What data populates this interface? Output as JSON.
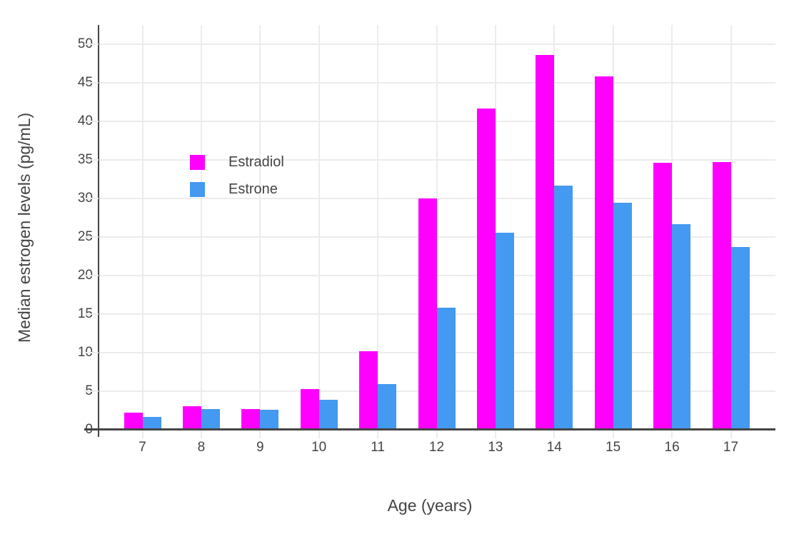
{
  "chart_data": {
    "type": "bar",
    "title": "",
    "xlabel": "Age (years)",
    "ylabel": "Median estrogen levels (pg/mL)",
    "categories": [
      7,
      8,
      9,
      10,
      11,
      12,
      13,
      14,
      15,
      16,
      17
    ],
    "series": [
      {
        "name": "Estradiol",
        "color": "#FF00FF",
        "values": [
          2.2,
          3.1,
          2.7,
          5.3,
          10.2,
          30.0,
          41.6,
          48.6,
          45.8,
          34.6,
          34.7
        ]
      },
      {
        "name": "Estrone",
        "color": "#4499F0",
        "values": [
          1.7,
          2.7,
          2.6,
          3.9,
          5.9,
          15.8,
          25.5,
          31.6,
          29.4,
          26.6,
          23.7
        ]
      }
    ],
    "yticks": [
      0,
      5,
      10,
      15,
      20,
      25,
      30,
      35,
      40,
      45,
      50
    ],
    "ylim": [
      0,
      52.4
    ],
    "grid": true,
    "legend_position": "inside-top-left",
    "colors": {
      "text": "#444444",
      "axis": "#444444",
      "grid": "#ECECEC",
      "background": "#FFFFFF"
    }
  }
}
